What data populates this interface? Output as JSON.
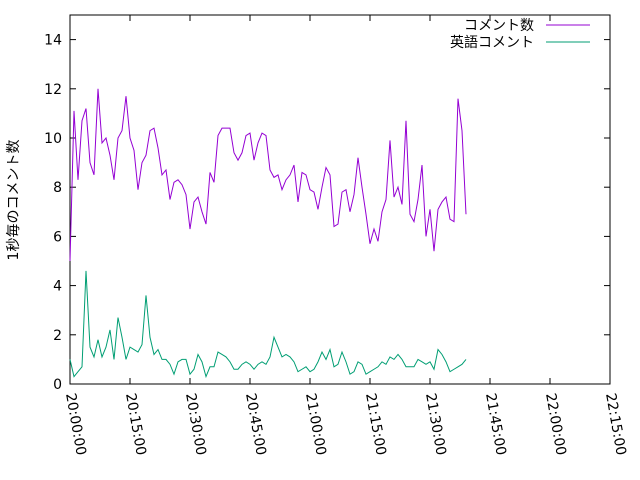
{
  "chart_data": {
    "type": "line",
    "ylabel": "1秒毎のコメント数",
    "xlim": [
      "20:00:00",
      "22:15:00"
    ],
    "ylim": [
      0,
      15
    ],
    "x_ticks": [
      "20:00:00",
      "20:15:00",
      "20:30:00",
      "20:45:00",
      "21:00:00",
      "21:15:00",
      "21:30:00",
      "21:45:00",
      "22:00:00",
      "22:15:00"
    ],
    "y_ticks": [
      0,
      2,
      4,
      6,
      8,
      10,
      12,
      14
    ],
    "legend_position": "top-right",
    "grid": false,
    "x_start": "20:00:00",
    "x_step_minutes": 1,
    "series": [
      {
        "name": "コメント数",
        "color": "#9400d3",
        "values": [
          5.0,
          11.1,
          8.3,
          10.7,
          11.2,
          9.0,
          8.5,
          12.0,
          9.8,
          10.0,
          9.3,
          8.3,
          10.0,
          10.3,
          11.7,
          10.0,
          9.5,
          7.9,
          9.0,
          9.3,
          10.3,
          10.4,
          9.6,
          8.5,
          8.7,
          7.5,
          8.2,
          8.3,
          8.1,
          7.7,
          6.3,
          7.4,
          7.6,
          7.0,
          6.5,
          8.6,
          8.2,
          10.1,
          10.4,
          10.4,
          10.4,
          9.4,
          9.1,
          9.4,
          10.1,
          10.2,
          9.1,
          9.8,
          10.2,
          10.1,
          8.7,
          8.4,
          8.5,
          7.9,
          8.3,
          8.5,
          8.9,
          7.4,
          8.6,
          8.5,
          7.9,
          7.8,
          7.1,
          8.0,
          8.8,
          8.5,
          6.4,
          6.5,
          7.8,
          7.9,
          7.0,
          7.7,
          9.2,
          8.0,
          6.9,
          5.7,
          6.3,
          5.8,
          7.0,
          7.5,
          9.9,
          7.6,
          8.0,
          7.3,
          10.7,
          6.9,
          6.6,
          7.5,
          8.9,
          6.0,
          7.1,
          5.4,
          7.1,
          7.4,
          7.6,
          6.7,
          6.6,
          11.6,
          10.3,
          6.9
        ]
      },
      {
        "name": "英語コメント",
        "color": "#009e73",
        "values": [
          1.0,
          0.3,
          0.5,
          0.7,
          4.6,
          1.5,
          1.1,
          1.8,
          1.1,
          1.5,
          2.2,
          1.0,
          2.7,
          1.9,
          1.0,
          1.5,
          1.4,
          1.3,
          1.6,
          3.6,
          1.9,
          1.2,
          1.4,
          1.0,
          1.0,
          0.8,
          0.4,
          0.9,
          1.0,
          1.0,
          0.4,
          0.6,
          1.2,
          0.9,
          0.3,
          0.7,
          0.7,
          1.3,
          1.2,
          1.1,
          0.9,
          0.6,
          0.6,
          0.8,
          0.9,
          0.8,
          0.6,
          0.8,
          0.9,
          0.8,
          1.1,
          1.9,
          1.5,
          1.1,
          1.2,
          1.1,
          0.9,
          0.5,
          0.6,
          0.7,
          0.5,
          0.6,
          0.9,
          1.3,
          1.0,
          1.4,
          0.7,
          0.8,
          1.3,
          0.9,
          0.4,
          0.5,
          0.9,
          0.8,
          0.4,
          0.5,
          0.6,
          0.7,
          0.9,
          0.8,
          1.1,
          1.0,
          1.2,
          1.0,
          0.7,
          0.7,
          0.7,
          1.0,
          0.9,
          0.8,
          0.9,
          0.6,
          1.4,
          1.2,
          0.9,
          0.5,
          0.6,
          0.7,
          0.8,
          1.0
        ]
      }
    ]
  }
}
